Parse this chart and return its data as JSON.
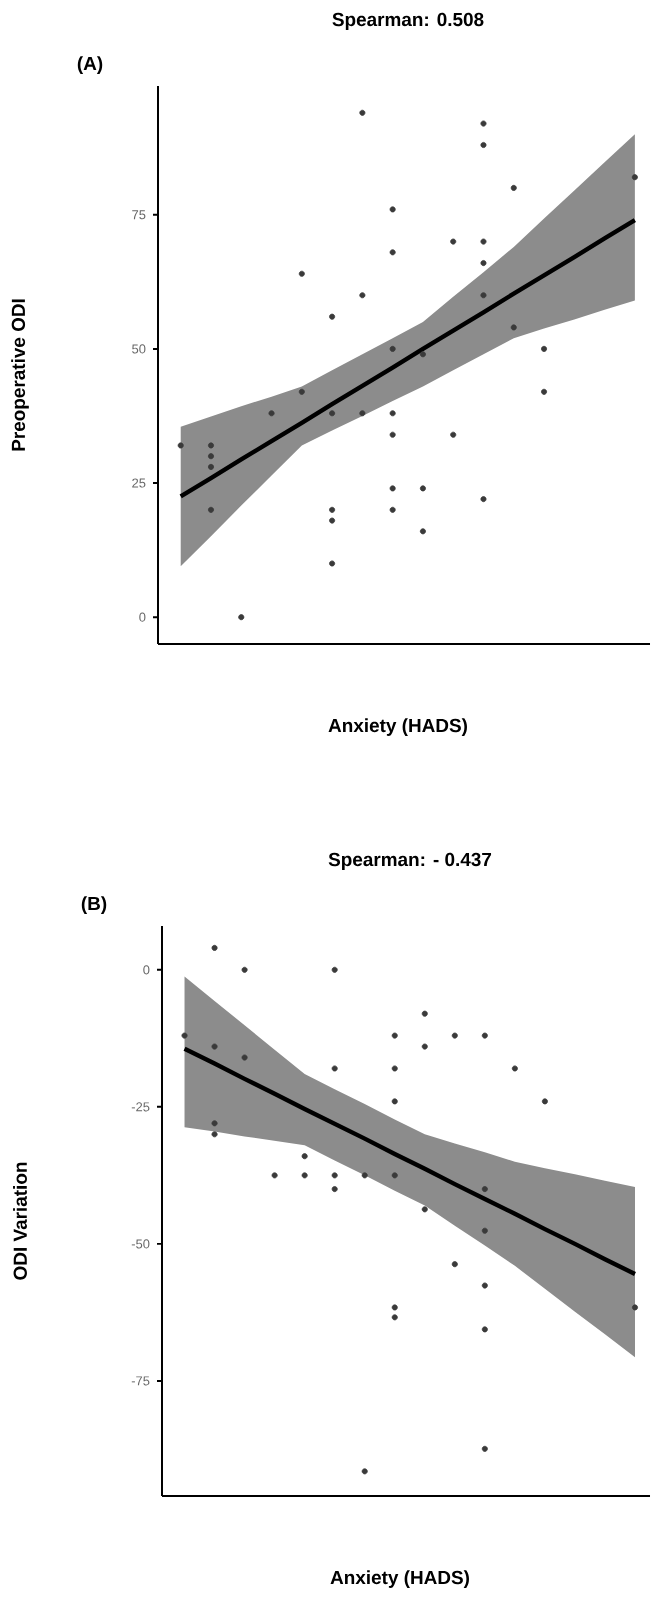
{
  "chart_data": [
    {
      "type": "scatter",
      "title": "Spearman: 0.508",
      "xlabel": "Anxiety (HADS)",
      "ylabel": "Preoperative ODI",
      "annotations": [
        "(A)"
      ],
      "marker": "circle",
      "ylim": [
        -5,
        99
      ],
      "yticks": [
        0,
        25,
        50,
        75
      ],
      "categories": [
        null,
        null,
        null,
        null,
        null,
        null,
        null,
        null,
        null,
        null,
        null,
        null,
        null,
        null,
        null,
        null
      ],
      "series": [
        {
          "color": "#3a3a3a",
          "values": [
            32,
            32,
            0,
            38,
            64,
            56,
            94,
            76,
            49,
            70,
            92,
            80,
            50,
            null,
            null,
            82
          ]
        },
        {
          "color": "#3a3a3a",
          "values": [
            null,
            30,
            null,
            null,
            42,
            38,
            60,
            68,
            24,
            34,
            88,
            54,
            42,
            null,
            null,
            null
          ]
        },
        {
          "color": "#3a3a3a",
          "values": [
            null,
            28,
            null,
            null,
            null,
            20,
            38,
            50,
            16,
            null,
            70,
            null,
            null,
            null,
            null,
            null
          ]
        },
        {
          "color": "#3a3a3a",
          "values": [
            null,
            20,
            null,
            null,
            null,
            18,
            null,
            38,
            null,
            null,
            66,
            null,
            null,
            null,
            null,
            null
          ]
        },
        {
          "color": "#3a3a3a",
          "values": [
            null,
            null,
            null,
            null,
            null,
            10,
            null,
            34,
            null,
            null,
            60,
            null,
            null,
            null,
            null,
            null
          ]
        },
        {
          "color": "#3a3a3a",
          "values": [
            null,
            null,
            null,
            null,
            null,
            null,
            null,
            24,
            null,
            null,
            22,
            null,
            null,
            null,
            null,
            null
          ]
        },
        {
          "color": "#3a3a3a",
          "values": [
            null,
            null,
            null,
            null,
            null,
            null,
            null,
            20,
            null,
            null,
            null,
            null,
            null,
            null,
            null,
            null
          ]
        },
        {
          "type": "line",
          "marker": "none",
          "color": "#000000",
          "values": [
            22.5,
            25.9,
            29.4,
            32.8,
            36.2,
            39.7,
            43.1,
            46.5,
            50,
            53.4,
            56.8,
            60.3,
            63.7,
            67.1,
            70.6,
            74
          ],
          "lower": [
            9.5,
            15.1,
            20.8,
            26.4,
            32,
            34.8,
            37.5,
            40.3,
            43,
            46,
            49,
            52,
            53.8,
            55.5,
            57.3,
            59
          ],
          "upper": [
            35.5,
            37.4,
            39.3,
            41.1,
            43,
            46,
            49,
            52,
            55,
            59.7,
            64.3,
            69,
            74.3,
            79.5,
            84.8,
            90
          ]
        }
      ]
    },
    {
      "type": "scatter",
      "title": "Spearman: - 0.437",
      "xlabel": "Anxiety (HADS)",
      "ylabel": "ODI Variation",
      "annotations": [
        "(B)"
      ],
      "marker": "circle",
      "ylim": [
        -96,
        8
      ],
      "yticks": [
        -75,
        -50,
        -25,
        0
      ],
      "categories": [
        null,
        null,
        null,
        null,
        null,
        null,
        null,
        null,
        null,
        null,
        null,
        null,
        null,
        null,
        null,
        null
      ],
      "series": [
        {
          "color": "#3a3a3a",
          "values": [
            -12,
            4,
            0,
            -37.5,
            -34,
            0,
            -37.5,
            -12,
            -8,
            -12,
            -12,
            -18,
            -24,
            null,
            null,
            -61.6
          ]
        },
        {
          "color": "#3a3a3a",
          "values": [
            null,
            -14,
            -16,
            null,
            -37.5,
            -18,
            -91.5,
            -18,
            -14,
            -53.7,
            -40,
            null,
            null,
            null,
            null,
            null
          ]
        },
        {
          "color": "#3a3a3a",
          "values": [
            null,
            -28,
            null,
            null,
            null,
            -37.5,
            null,
            -24,
            -43.7,
            null,
            -47.6,
            null,
            null,
            null,
            null,
            null
          ]
        },
        {
          "color": "#3a3a3a",
          "values": [
            null,
            -30,
            null,
            null,
            null,
            -40,
            null,
            -37.5,
            null,
            null,
            -57.6,
            null,
            null,
            null,
            null,
            null
          ]
        },
        {
          "color": "#3a3a3a",
          "values": [
            null,
            null,
            null,
            null,
            null,
            null,
            null,
            -61.6,
            null,
            null,
            -65.6,
            null,
            null,
            null,
            null,
            null
          ]
        },
        {
          "color": "#3a3a3a",
          "values": [
            null,
            null,
            null,
            null,
            null,
            null,
            null,
            -63.4,
            null,
            null,
            -87.4,
            null,
            null,
            null,
            null,
            null
          ]
        },
        {
          "type": "line",
          "marker": "none",
          "color": "#000000",
          "values": [
            -14.4,
            -17.1,
            -19.9,
            -22.6,
            -25.4,
            -28.1,
            -30.8,
            -33.6,
            -36.3,
            -39.1,
            -41.8,
            -44.5,
            -47.3,
            -50,
            -52.8,
            -55.5
          ],
          "lower": [
            -28.7,
            -29.5,
            -30.4,
            -31.2,
            -32,
            -34.8,
            -37.5,
            -40.3,
            -43,
            -46.7,
            -50.3,
            -54,
            -58.2,
            -62.4,
            -66.5,
            -70.7
          ],
          "upper": [
            -1.2,
            -5.7,
            -10.1,
            -14.6,
            -19,
            -21.8,
            -24.5,
            -27.3,
            -30,
            -31.7,
            -33.3,
            -35,
            -36.2,
            -37.3,
            -38.5,
            -39.6
          ]
        }
      ]
    }
  ]
}
